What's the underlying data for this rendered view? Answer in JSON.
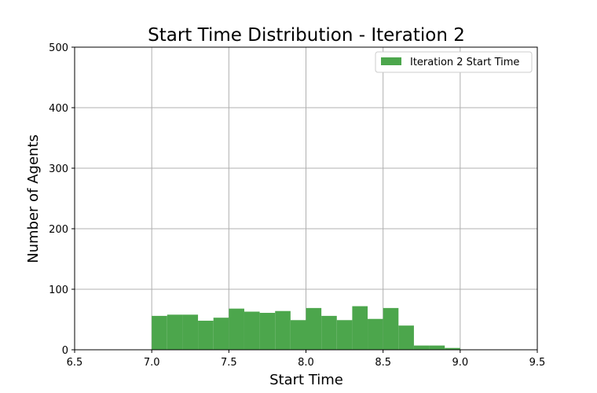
{
  "chart_data": {
    "type": "bar",
    "title": "Start Time Distribution - Iteration 2",
    "xlabel": "Start Time",
    "ylabel": "Number of Agents",
    "xlim": [
      6.5,
      9.5
    ],
    "ylim": [
      0,
      500
    ],
    "xticks": [
      "6.5",
      "7.0",
      "7.5",
      "8.0",
      "8.5",
      "9.0",
      "9.5"
    ],
    "yticks": [
      "0",
      "100",
      "200",
      "300",
      "400",
      "500"
    ],
    "grid": true,
    "legend_position": "top-right",
    "series": [
      {
        "name": "Iteration 2 Start Time",
        "color": "#4ca64c",
        "bin_edges": [
          7.0,
          7.1,
          7.2,
          7.3,
          7.4,
          7.5,
          7.6,
          7.7,
          7.8,
          7.9,
          8.0,
          8.1,
          8.2,
          8.3,
          8.4,
          8.5,
          8.6,
          8.7,
          8.8,
          8.9,
          9.0
        ],
        "values": [
          56,
          58,
          58,
          48,
          53,
          68,
          63,
          61,
          64,
          49,
          69,
          56,
          49,
          72,
          51,
          69,
          40,
          7,
          7,
          3
        ]
      }
    ]
  }
}
